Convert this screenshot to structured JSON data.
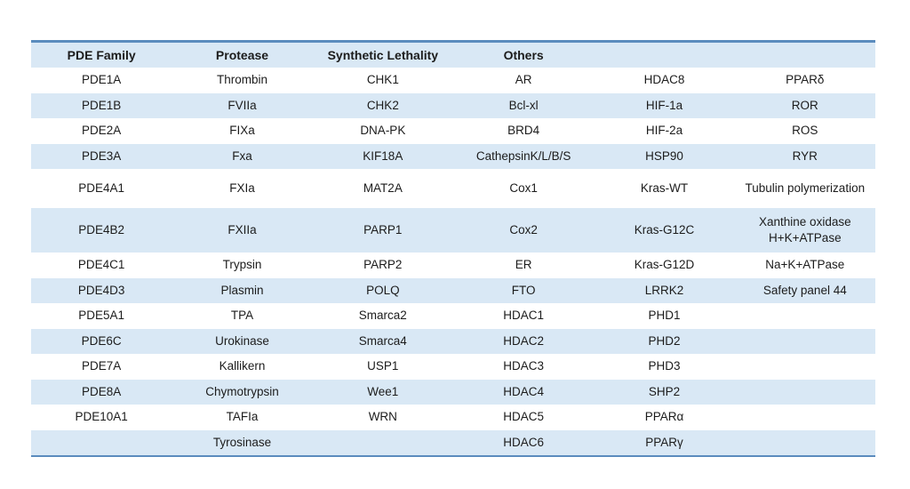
{
  "table": {
    "colors": {
      "border_blue": "#5b8cbe",
      "row_shade": "#d9e8f5",
      "text": "#1c1c1c",
      "background": "#ffffff"
    },
    "headers": [
      "PDE Family",
      "Protease",
      "Synthetic Lethality",
      "Others",
      "",
      ""
    ],
    "rows": [
      {
        "shaded": false,
        "cells": [
          "PDE1A",
          "Thrombin",
          "CHK1",
          "AR",
          "HDAC8",
          "PPARδ"
        ]
      },
      {
        "shaded": true,
        "cells": [
          "PDE1B",
          "FVIIa",
          "CHK2",
          "Bcl-xl",
          "HIF-1a",
          "ROR"
        ]
      },
      {
        "shaded": false,
        "cells": [
          "PDE2A",
          "FIXa",
          "DNA-PK",
          "BRD4",
          "HIF-2a",
          "ROS"
        ]
      },
      {
        "shaded": true,
        "cells": [
          "PDE3A",
          "Fxa",
          "KIF18A",
          "CathepsinK/L/B/S",
          "HSP90",
          "RYR"
        ]
      },
      {
        "shaded": false,
        "cells": [
          "PDE4A1",
          "FXIa",
          "MAT2A",
          "Cox1",
          "Kras-WT",
          "Tubulin polymerization"
        ]
      },
      {
        "shaded": true,
        "cells": [
          "PDE4B2",
          "FXIIa",
          "PARP1",
          "Cox2",
          "Kras-G12C",
          "Xanthine oxidase\nH+K+ATPase"
        ]
      },
      {
        "shaded": false,
        "cells": [
          "PDE4C1",
          "Trypsin",
          "PARP2",
          "ER",
          "Kras-G12D",
          "Na+K+ATPase"
        ]
      },
      {
        "shaded": true,
        "cells": [
          "PDE4D3",
          "Plasmin",
          "POLQ",
          "FTO",
          "LRRK2",
          "Safety panel 44"
        ]
      },
      {
        "shaded": false,
        "cells": [
          "PDE5A1",
          "TPA",
          "Smarca2",
          "HDAC1",
          "PHD1",
          ""
        ]
      },
      {
        "shaded": true,
        "cells": [
          "PDE6C",
          "Urokinase",
          "Smarca4",
          "HDAC2",
          "PHD2",
          ""
        ]
      },
      {
        "shaded": false,
        "cells": [
          "PDE7A",
          "Kallikern",
          "USP1",
          "HDAC3",
          "PHD3",
          ""
        ]
      },
      {
        "shaded": true,
        "cells": [
          "PDE8A",
          "Chymotrypsin",
          "Wee1",
          "HDAC4",
          "SHP2",
          ""
        ]
      },
      {
        "shaded": false,
        "cells": [
          "PDE10A1",
          "TAFIa",
          "WRN",
          "HDAC5",
          "PPARα",
          ""
        ]
      },
      {
        "shaded": true,
        "cells": [
          "",
          "Tyrosinase",
          "",
          "HDAC6",
          "PPARγ",
          ""
        ]
      }
    ]
  }
}
